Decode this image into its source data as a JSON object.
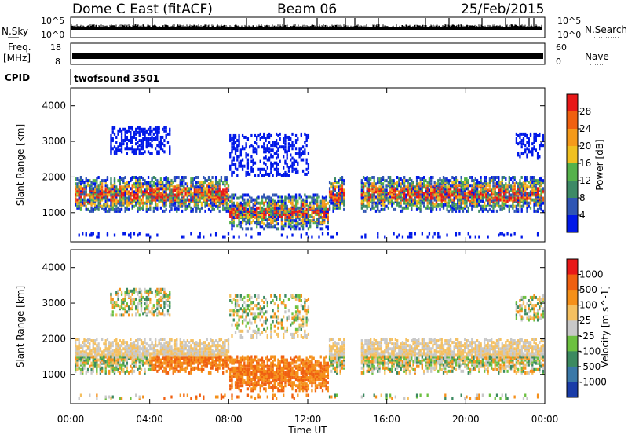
{
  "header": {
    "radar": "Dome C East (fitACF)",
    "beam": "Beam 06",
    "date": "25/Feb/2015"
  },
  "strips": {
    "nsky_label": "N.Sky",
    "nsky_ticks": [
      "10^5",
      "10^0"
    ],
    "nsearch_label": "N.Search",
    "nsearch_ticks": [
      "10^5",
      "10^0"
    ],
    "freq_label": "Freq.",
    "freq_unit": "[MHz]",
    "freq_ticks": [
      "18",
      "8"
    ],
    "nave_label": "Nave",
    "nave_ticks": [
      "60",
      "0"
    ],
    "cpid_label": "CPID",
    "cpid_value": "twofsound 3501"
  },
  "chart_data": [
    {
      "type": "heatmap",
      "name": "power",
      "ylabel": "Slant Range [km]",
      "ylim": [
        180,
        4500
      ],
      "yticks": [
        "4000",
        "3000",
        "2000",
        "1000"
      ],
      "colorbar_label": "Power [dB]",
      "colorbar_ticks": [
        "28",
        "24",
        "20",
        "16",
        "12",
        "8",
        "4"
      ],
      "colors": [
        "#0018e8",
        "#2f55b4",
        "#3d8a66",
        "#55b24b",
        "#f0c020",
        "#f59a1a",
        "#f06010",
        "#e81818"
      ],
      "xlim": [
        0,
        24
      ]
    },
    {
      "type": "heatmap",
      "name": "velocity",
      "ylabel": "Slant Range [km]",
      "ylim": [
        180,
        4500
      ],
      "yticks": [
        "4000",
        "3000",
        "2000",
        "1000"
      ],
      "colorbar_label": "Velocity [m s^-1]",
      "colorbar_ticks": [
        "1000",
        "500",
        "100",
        "25",
        "-25",
        "-100",
        "-500",
        "-1000"
      ],
      "colors": [
        "#1a3ca8",
        "#3a78a8",
        "#3c8a60",
        "#6cc040",
        "#c8c8c8",
        "#f5c060",
        "#f5901a",
        "#f06010",
        "#e81818"
      ],
      "xlim": [
        0,
        24
      ]
    }
  ],
  "xaxis": {
    "ticks": [
      "00:00",
      "04:00",
      "08:00",
      "12:00",
      "16:00",
      "20:00",
      "00:00"
    ],
    "label": "Time UT"
  }
}
